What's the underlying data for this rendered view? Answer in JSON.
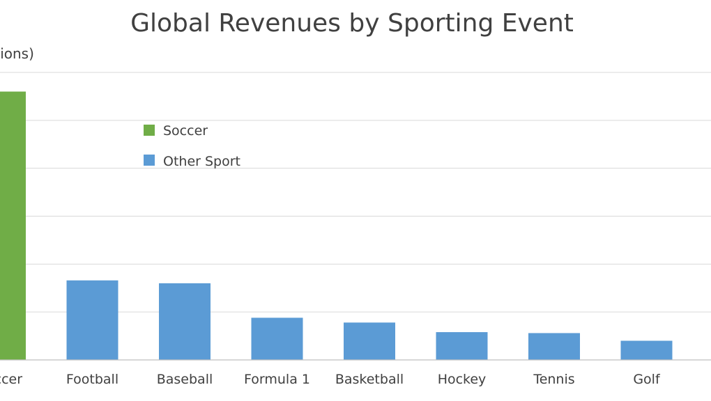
{
  "chart_data": {
    "type": "bar",
    "title": "Global Revenues by Sporting Event",
    "ylabel": "(Billions)",
    "xlabel": "",
    "categories": [
      "Soccer",
      "Football",
      "Baseball",
      "Formula 1",
      "Basketball",
      "Hockey",
      "Tennis",
      "Golf"
    ],
    "values": [
      28.0,
      8.3,
      8.0,
      4.4,
      3.9,
      2.9,
      2.8,
      2.0
    ],
    "category_colors": [
      "#70ad47",
      "#5b9bd5",
      "#5b9bd5",
      "#5b9bd5",
      "#5b9bd5",
      "#5b9bd5",
      "#5b9bd5",
      "#5b9bd5"
    ],
    "ylim": [
      0,
      30
    ],
    "yticks": [
      0,
      5,
      10,
      15,
      20,
      25,
      30
    ],
    "grid": true,
    "legend": {
      "position": "top-left",
      "entries": [
        {
          "label": "Soccer",
          "color": "#70ad47"
        },
        {
          "label": "Other Sport",
          "color": "#5b9bd5"
        }
      ]
    }
  }
}
